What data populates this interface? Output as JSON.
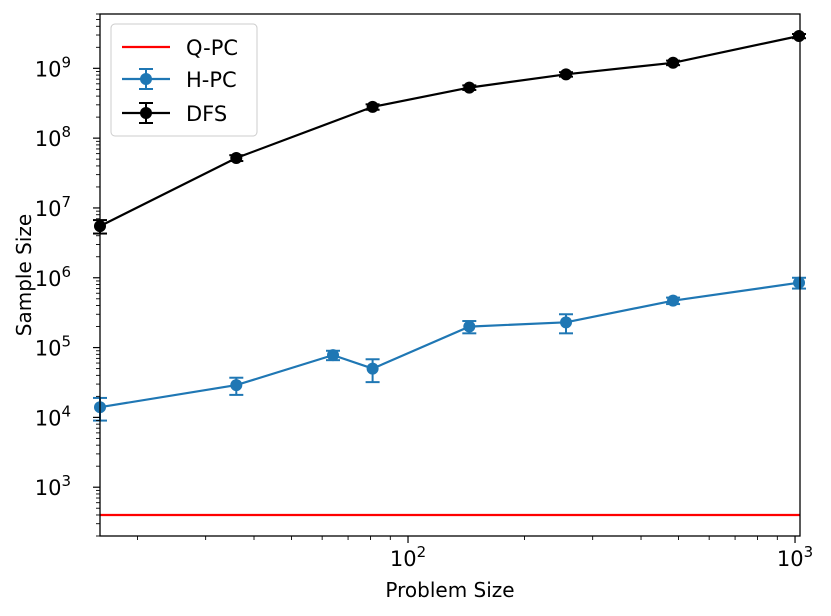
{
  "chart_data": {
    "type": "line",
    "xscale": "log",
    "yscale": "log",
    "xlabel": "Problem Size",
    "ylabel": "Sample Size",
    "xlim": [
      16,
      1030
    ],
    "ylim": [
      200,
      6000000000
    ],
    "x_ticks": [
      {
        "value": 100,
        "base": "10",
        "exp": "2"
      },
      {
        "value": 1000,
        "base": "10",
        "exp": "3"
      }
    ],
    "y_ticks": [
      {
        "value": 1000,
        "base": "10",
        "exp": "3"
      },
      {
        "value": 10000,
        "base": "10",
        "exp": "4"
      },
      {
        "value": 100000,
        "base": "10",
        "exp": "5"
      },
      {
        "value": 1000000,
        "base": "10",
        "exp": "6"
      },
      {
        "value": 10000000,
        "base": "10",
        "exp": "7"
      },
      {
        "value": 100000000,
        "base": "10",
        "exp": "8"
      },
      {
        "value": 1000000000,
        "base": "10",
        "exp": "9"
      }
    ],
    "legend": {
      "position": "top-left"
    },
    "series": [
      {
        "name": "Q-PC",
        "kind": "hline",
        "color": "#ff0000",
        "value": 400
      },
      {
        "name": "H-PC",
        "kind": "errorbar",
        "color": "#1f77b4",
        "x": [
          16,
          36,
          64,
          81,
          144,
          256,
          484,
          1024
        ],
        "y": [
          14000,
          29000,
          78000,
          50000,
          200000,
          230000,
          470000,
          850000
        ],
        "yerr_low": [
          5000,
          8000,
          12000,
          18000,
          40000,
          70000,
          50000,
          150000
        ],
        "yerr_high": [
          5000,
          8000,
          12000,
          18000,
          40000,
          70000,
          50000,
          150000
        ]
      },
      {
        "name": "DFS",
        "kind": "errorbar",
        "color": "#000000",
        "x": [
          16,
          36,
          81,
          144,
          256,
          484,
          1024
        ],
        "y": [
          5500000,
          52000000,
          280000000,
          530000000,
          820000000,
          1200000000,
          2900000000
        ],
        "yerr_low": [
          1200000,
          5000000,
          25000000,
          40000000,
          60000000,
          90000000,
          200000000
        ],
        "yerr_high": [
          1200000,
          5000000,
          25000000,
          40000000,
          60000000,
          90000000,
          200000000
        ]
      }
    ]
  }
}
